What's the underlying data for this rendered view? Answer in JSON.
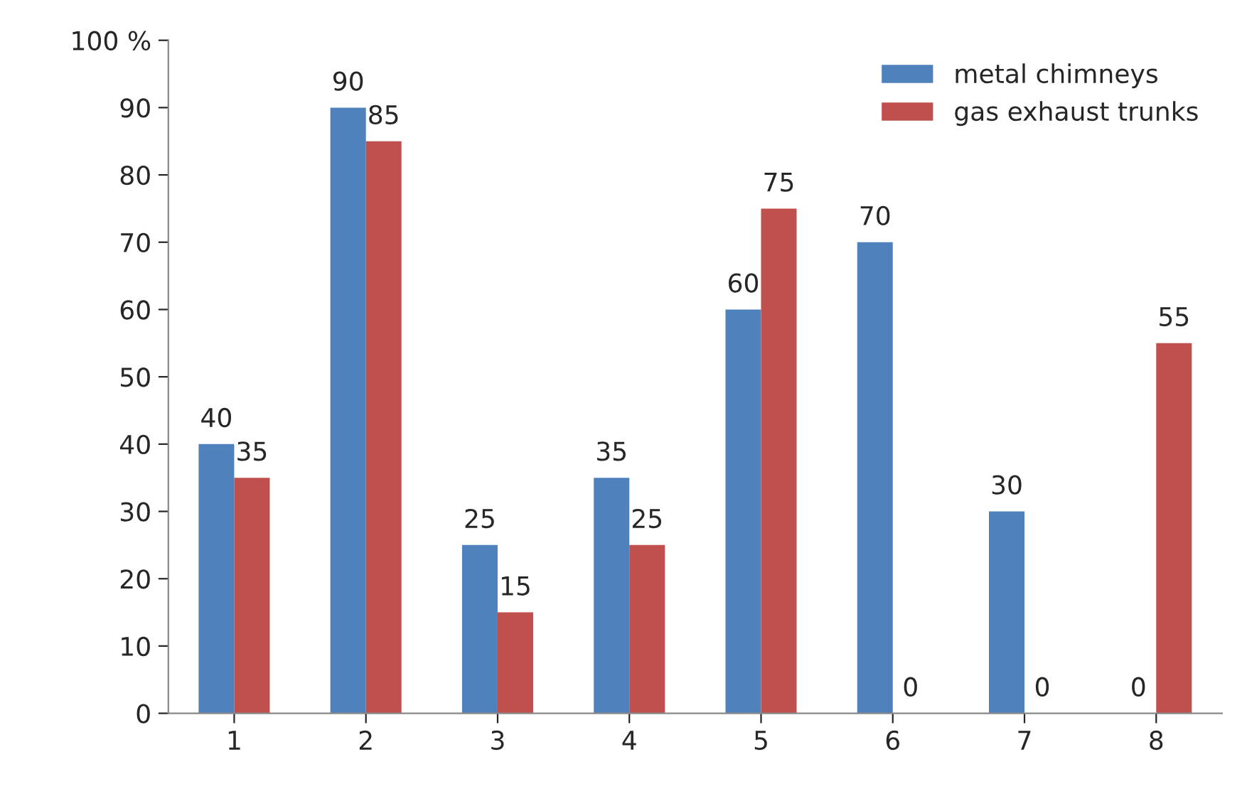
{
  "chart_data": {
    "type": "bar",
    "categories": [
      "1",
      "2",
      "3",
      "4",
      "5",
      "6",
      "7",
      "8"
    ],
    "series": [
      {
        "name": "metal chimneys",
        "color": "#4f81bd",
        "values": [
          40,
          90,
          25,
          35,
          60,
          70,
          30,
          0
        ]
      },
      {
        "name": "gas exhaust trunks",
        "color": "#c0504d",
        "values": [
          35,
          85,
          15,
          25,
          75,
          0,
          0,
          55
        ]
      }
    ],
    "ylim": [
      0,
      100
    ],
    "yticks": [
      0,
      10,
      20,
      30,
      40,
      50,
      60,
      70,
      80,
      90,
      {
        "value": 100,
        "label": "100 %"
      }
    ],
    "grid": false,
    "legend": "top right",
    "data_labels": true
  }
}
